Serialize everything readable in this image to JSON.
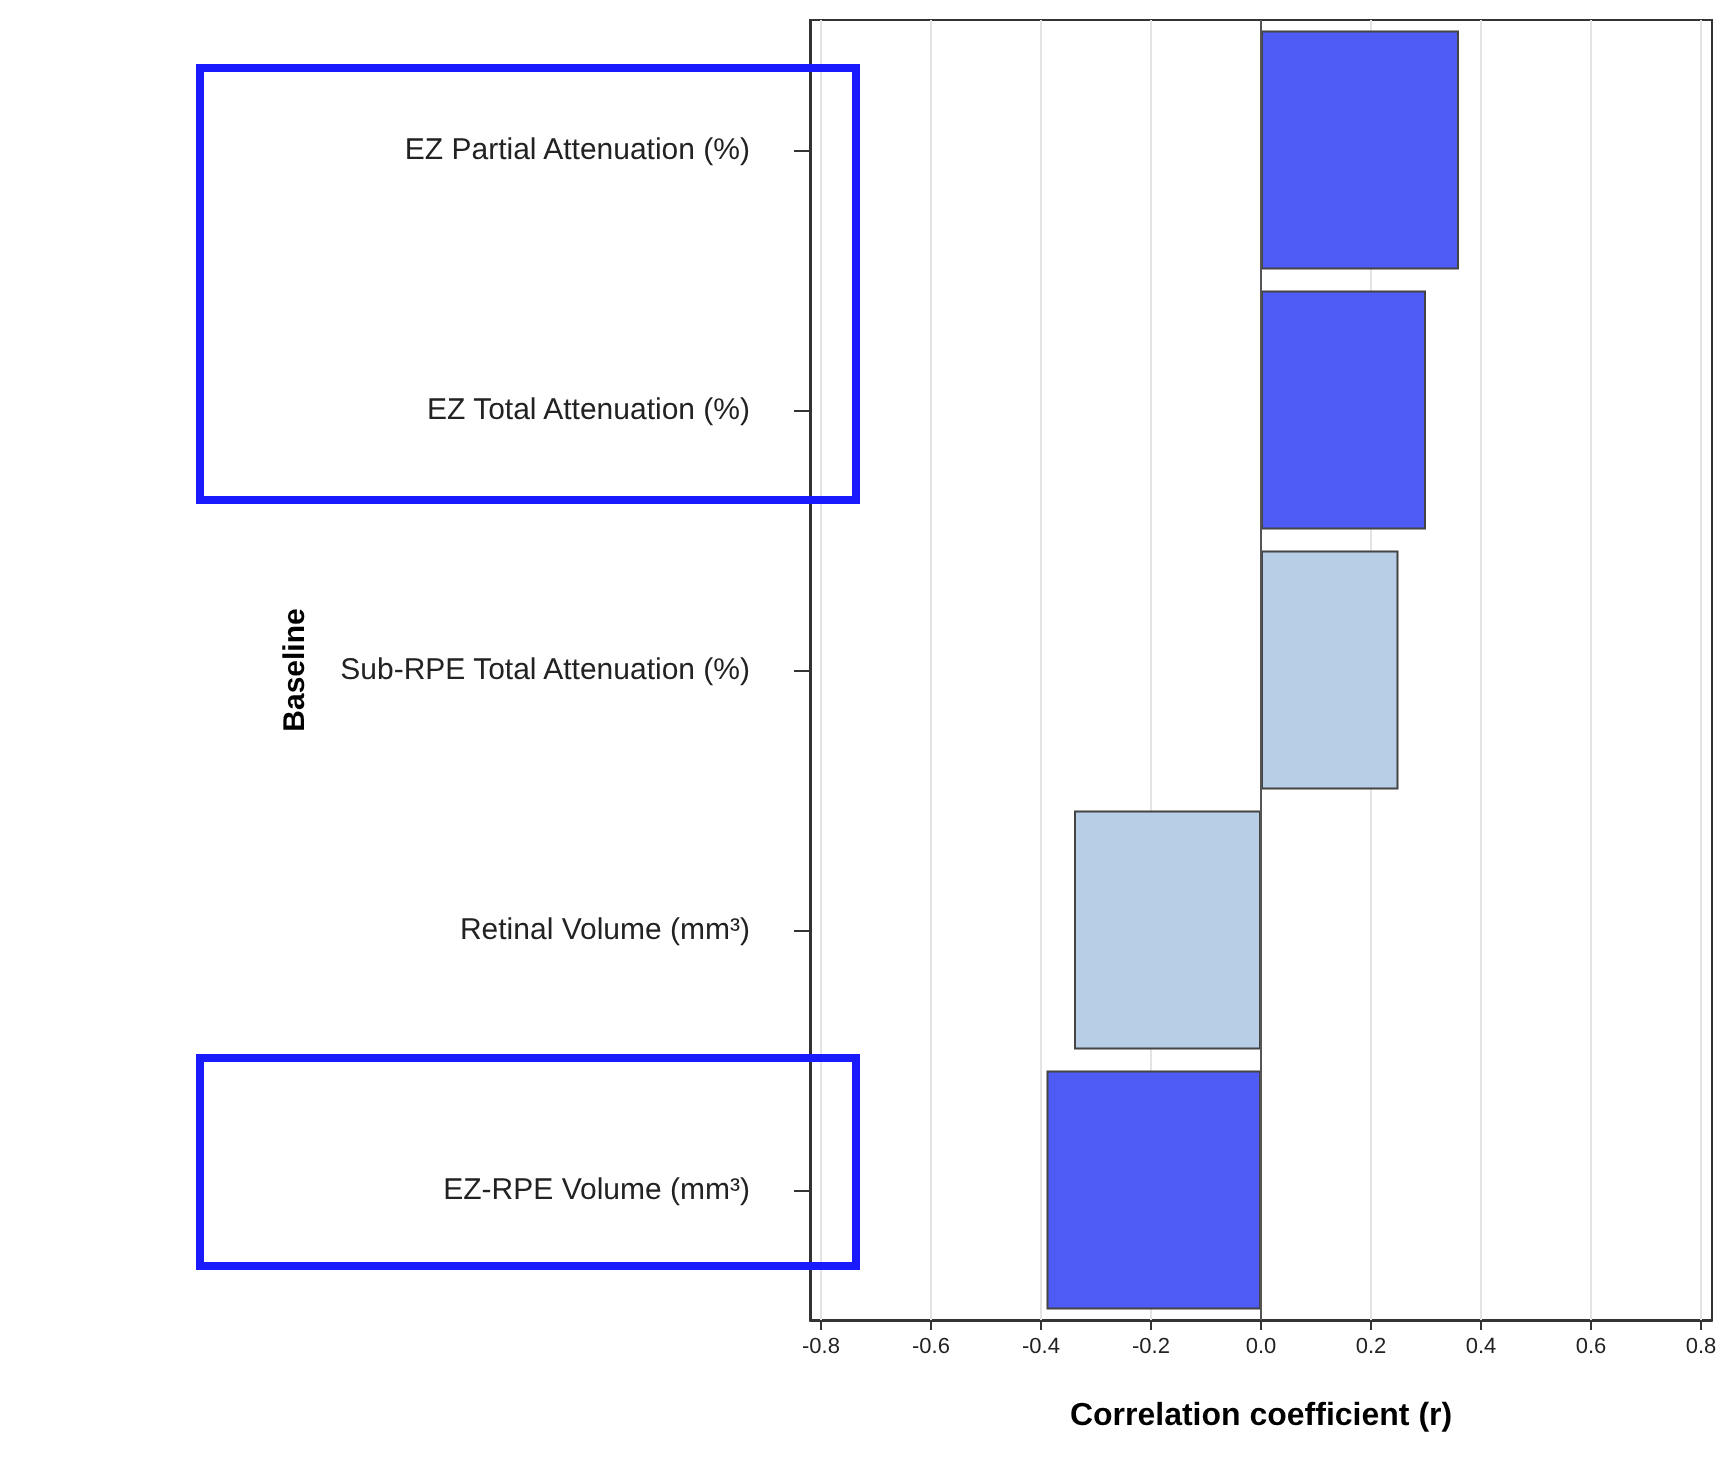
{
  "chart_data": {
    "type": "bar",
    "orientation": "horizontal",
    "xlabel": "Correlation coefficient (r)",
    "ylabel": "Baseline",
    "categories": [
      "EZ Partial Attenuation (%)",
      "EZ Total Attenuation (%)",
      "Sub-RPE Total Attenuation (%)",
      "Retinal Volume (mm³)",
      "EZ-RPE Volume (mm³)"
    ],
    "values": [
      0.36,
      0.3,
      0.25,
      -0.34,
      -0.39
    ],
    "colors": [
      "#4f5bf5",
      "#4f5bf5",
      "#b8cde6",
      "#b8cde6",
      "#4f5bf5"
    ],
    "xlim": [
      -0.82,
      0.82
    ],
    "xticks": [
      {
        "value": -0.8,
        "label": "-0.8"
      },
      {
        "value": -0.6,
        "label": "-0.6"
      },
      {
        "value": -0.4,
        "label": "-0.4"
      },
      {
        "value": -0.2,
        "label": "-0.2"
      },
      {
        "value": 0,
        "label": "0.0"
      },
      {
        "value": 0.2,
        "label": "0.2"
      },
      {
        "value": 0.4,
        "label": "0.4"
      },
      {
        "value": 0.6,
        "label": "0.6"
      },
      {
        "value": 0.8,
        "label": "0.8"
      }
    ],
    "grid": "x",
    "ref_lines": [
      {
        "axis": "x",
        "value": 0,
        "color": "#555555"
      }
    ]
  }
}
